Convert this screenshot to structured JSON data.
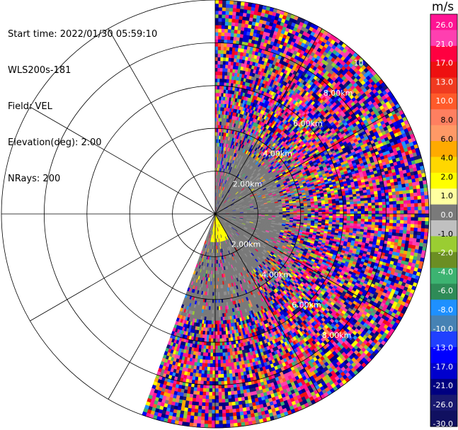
{
  "info": {
    "start_time": "Start time: 2022/01/30 05:59:10",
    "instrument": "WLS200s-181",
    "field": "Field: VEL",
    "elevation": "Elevation(deg): 2.00",
    "nrays": "NRays: 200"
  },
  "colorbar": {
    "unit": "m/s",
    "ticks": [
      "26.0",
      "21.0",
      "17.0",
      "13.0",
      "10.0",
      "8.0",
      "6.0",
      "4.0",
      "2.0",
      "1.0",
      "0.0",
      "-1.0",
      "-2.0",
      "-4.0",
      "-6.0",
      "-8.0",
      "-10.0",
      "-13.0",
      "-17.0",
      "-21.0",
      "-26.0",
      "-30.0"
    ],
    "colors": [
      "#ff1493",
      "#ff3fb0",
      "#ff0040",
      "#ee1010",
      "#f03a20",
      "#ff5a2a",
      "#ff7f60",
      "#ff9966",
      "#ffaa00",
      "#ffd700",
      "#ffff00",
      "#ffffa0",
      "#7a7a7a",
      "#c0c0c0",
      "#9acd32",
      "#6b8e23",
      "#3cb371",
      "#2e8b57",
      "#1e90ff",
      "#4682b4",
      "#2040ff",
      "#0000ff",
      "#0000cd",
      "#000080",
      "#191970",
      "#101060"
    ]
  },
  "chart_data": {
    "type": "heatmap",
    "projection": "polar PPI",
    "field": "VEL",
    "units": "m/s",
    "range_rings_km": [
      2,
      4,
      6,
      8,
      10
    ],
    "ring_labels": [
      "2.00km",
      "4.00km",
      "6.00km",
      "8.00km",
      "10"
    ],
    "azimuth_coverage_deg": [
      0,
      200
    ],
    "n_rays": 200,
    "elevation_deg": 2.0,
    "color_scale_ms": [
      -30,
      26
    ]
  }
}
